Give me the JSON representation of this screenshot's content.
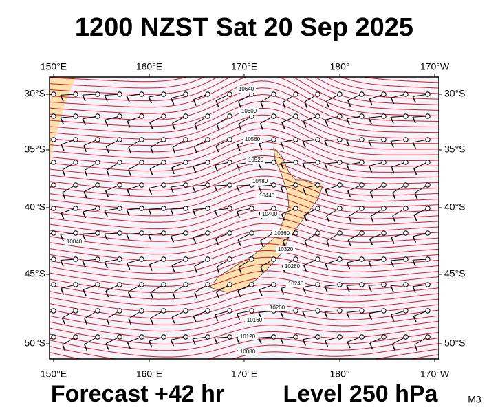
{
  "header": {
    "title": "1200 NZST Sat 20 Sep 2025"
  },
  "map": {
    "lon_labels": [
      "150°E",
      "160°E",
      "170°E",
      "180°",
      "170°W"
    ],
    "lat_labels": [
      "30°S",
      "35°S",
      "40°S",
      "45°S",
      "50°S"
    ],
    "contour_labels": [
      10640,
      10600,
      10560,
      10520,
      10480,
      10440,
      10400,
      10360,
      10320,
      10280,
      10240,
      10200,
      10160,
      10120,
      10080,
      10040
    ]
  },
  "footer": {
    "forecast": "Forecast +42 hr",
    "level": "Level 250 hPa",
    "model": "M3"
  }
}
